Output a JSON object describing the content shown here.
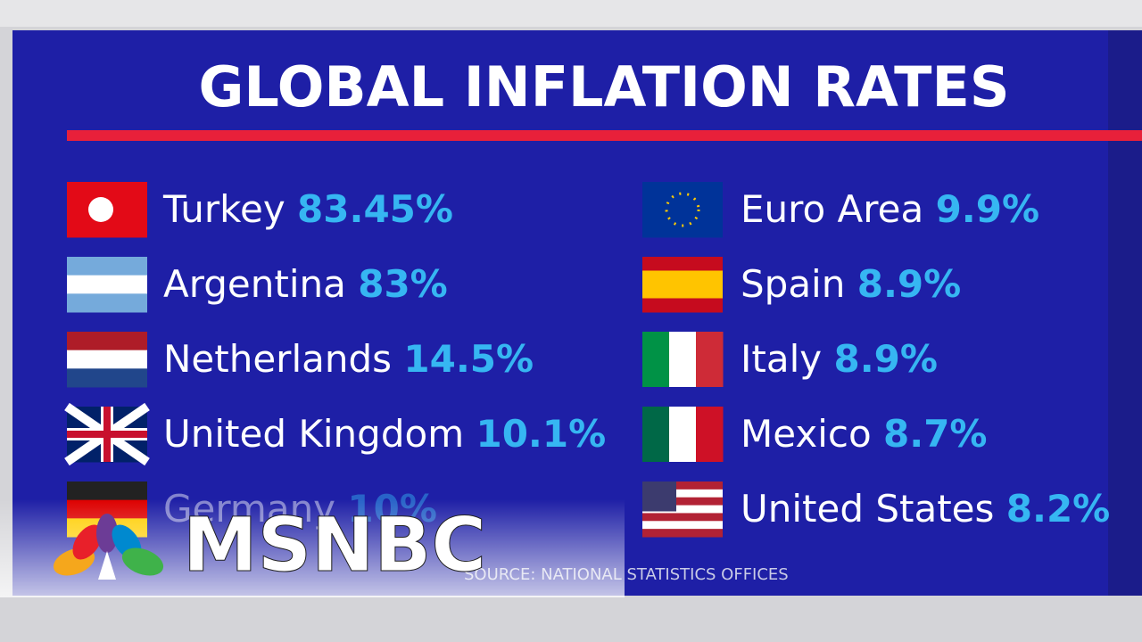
{
  "title": "GLOBAL INFLATION RATES",
  "left": [
    {
      "country": "Turkey",
      "rate": "83.45%"
    },
    {
      "country": "Argentina",
      "rate": "83%"
    },
    {
      "country": "Netherlands",
      "rate": "14.5%"
    },
    {
      "country": "United Kingdom",
      "rate": "10.1%"
    },
    {
      "country": "Germany",
      "rate": "10%"
    }
  ],
  "right": [
    {
      "country": "Euro Area",
      "rate": "9.9%"
    },
    {
      "country": "Spain",
      "rate": "8.9%"
    },
    {
      "country": "Italy",
      "rate": "8.9%"
    },
    {
      "country": "Mexico",
      "rate": "8.7%"
    },
    {
      "country": "United States",
      "rate": "8.2%"
    }
  ],
  "source": "SOURCE: NATIONAL STATISTICS OFFICES",
  "logo": "MSNBC"
}
